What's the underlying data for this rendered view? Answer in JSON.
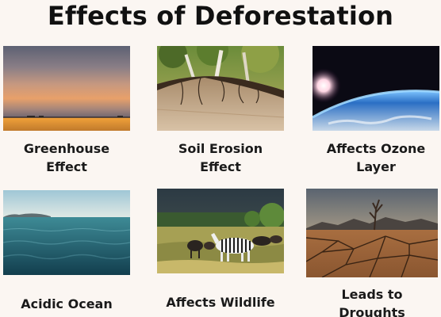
{
  "title": "Effects of Deforestation",
  "cards": [
    {
      "id": "greenhouse",
      "line1": "Greenhouse",
      "line2": "Effect"
    },
    {
      "id": "soil-erosion",
      "line1": "Soil Erosion",
      "line2": "Effect"
    },
    {
      "id": "ozone",
      "line1": "Affects Ozone",
      "line2": "Layer"
    },
    {
      "id": "acidic-ocean",
      "line1": "Acidic Ocean",
      "line2": ""
    },
    {
      "id": "wildlife",
      "line1": "Affects Wildlife",
      "line2": ""
    },
    {
      "id": "droughts",
      "line1": "Leads to",
      "line2": "Droughts"
    }
  ]
}
